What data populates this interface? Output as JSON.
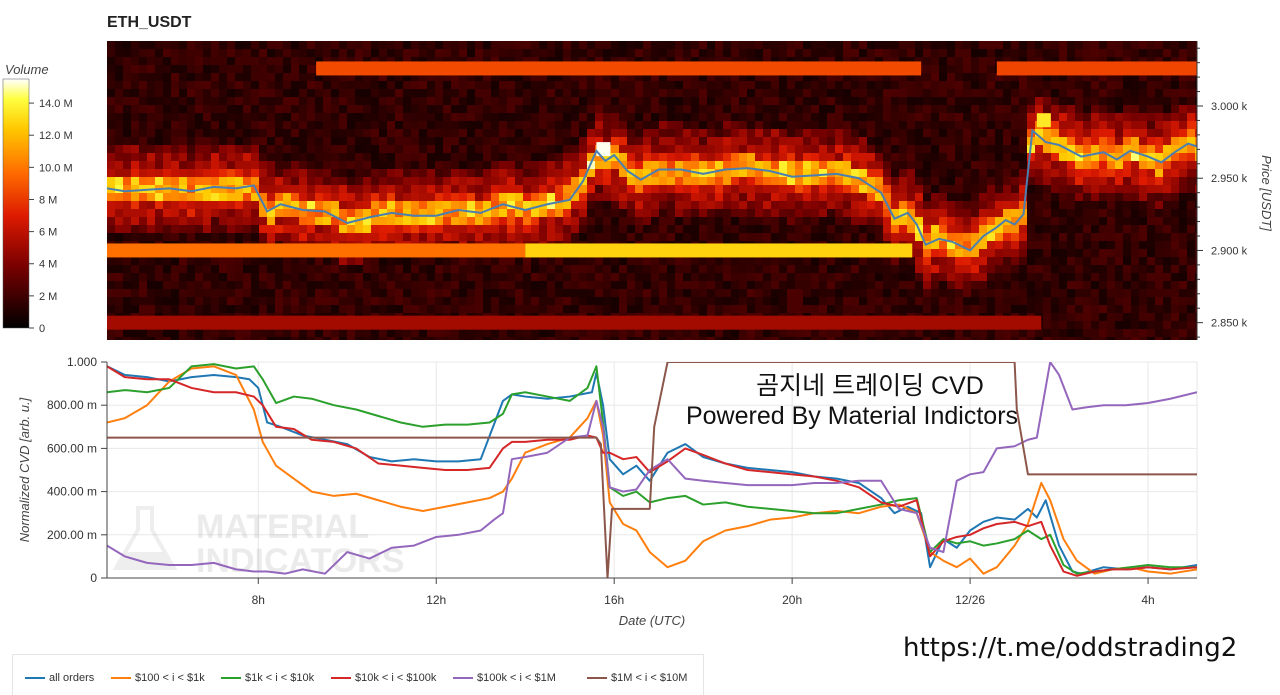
{
  "header": {
    "title": "ETH_USDT"
  },
  "footer": {
    "url": "https://t.me/oddstrading2"
  },
  "chart_data": [
    {
      "type": "heatmap",
      "title": "ETH_USDT",
      "colorbar": {
        "label": "Volume",
        "ticks": [
          "0",
          "2 M",
          "4 M",
          "6 M",
          "8 M",
          "10.0 M",
          "12.0 M",
          "14.0 M"
        ],
        "tick_values": [
          0,
          2,
          4,
          6,
          8,
          10,
          12,
          14
        ],
        "range": [
          0,
          15.5
        ]
      },
      "ylabel": "Price [USDT]",
      "y_ticks": [
        "2.850 k",
        "2.900 k",
        "2.950 k",
        "3.000 k"
      ],
      "y_tick_values": [
        2850,
        2900,
        2950,
        3000
      ],
      "ylim": [
        2838,
        3045
      ],
      "x_range_hours": [
        4.6,
        29.1
      ],
      "levels": [
        {
          "price": 3026,
          "start": 9.3,
          "end": 22.9,
          "volume": 8.6
        },
        {
          "price": 3026,
          "start": 24.6,
          "end": 29.1,
          "volume": 8.4
        },
        {
          "price": 2900,
          "start": 4.6,
          "end": 14.0,
          "volume": 9.8
        },
        {
          "price": 2900,
          "start": 14.0,
          "end": 22.7,
          "volume": 12.8
        },
        {
          "price": 2850,
          "start": 4.6,
          "end": 25.6,
          "volume": 5.2
        }
      ],
      "price_line": {
        "color": "#4a7fb0",
        "x": [
          4.6,
          5.0,
          5.5,
          6.0,
          6.5,
          7.0,
          7.5,
          7.9,
          8.2,
          8.5,
          9.0,
          9.5,
          10.0,
          10.5,
          11.0,
          11.5,
          12.0,
          12.5,
          13.0,
          13.5,
          14.0,
          14.5,
          15.0,
          15.3,
          15.6,
          15.8,
          16.0,
          16.3,
          16.6,
          17.0,
          17.5,
          18.0,
          18.5,
          19.0,
          19.5,
          20.0,
          20.5,
          21.0,
          21.5,
          22.0,
          22.3,
          22.6,
          22.8,
          23.0,
          23.3,
          23.6,
          24.0,
          24.3,
          24.6,
          24.8,
          25.0,
          25.2,
          25.4,
          25.7,
          26.0,
          26.5,
          27.0,
          27.3,
          27.6,
          28.0,
          28.3,
          28.6,
          28.9,
          29.1
        ],
        "y": [
          2943,
          2941,
          2942,
          2943,
          2941,
          2944,
          2943,
          2945,
          2927,
          2932,
          2928,
          2927,
          2919,
          2923,
          2926,
          2924,
          2924,
          2928,
          2926,
          2932,
          2928,
          2932,
          2935,
          2948,
          2969,
          2962,
          2966,
          2955,
          2949,
          2956,
          2956,
          2953,
          2956,
          2957,
          2955,
          2951,
          2952,
          2953,
          2950,
          2940,
          2922,
          2926,
          2918,
          2904,
          2908,
          2906,
          2900,
          2910,
          2916,
          2921,
          2918,
          2925,
          2983,
          2975,
          2973,
          2965,
          2968,
          2963,
          2969,
          2965,
          2961,
          2968,
          2974,
          2972
        ]
      }
    },
    {
      "type": "line",
      "xlabel": "Date (UTC)",
      "ylabel": "Normalized CVD [arb. u.]",
      "x_ticks": [
        "8h",
        "12h",
        "16h",
        "20h",
        "12/26",
        "4h"
      ],
      "x_tick_values": [
        8,
        12,
        16,
        20,
        24,
        28
      ],
      "y_ticks": [
        "0",
        "200.00 m",
        "400.00 m",
        "600.00 m",
        "800.00 m",
        "1.000"
      ],
      "y_tick_values": [
        0,
        0.2,
        0.4,
        0.6,
        0.8,
        1.0
      ],
      "xlim": [
        4.6,
        29.1
      ],
      "ylim": [
        0,
        1.0
      ],
      "annotation": [
        "곰지네 트레이딩 CVD",
        "Powered By Material Indictors"
      ],
      "watermark": [
        "MATERIAL",
        "INDICATORS"
      ],
      "series": [
        {
          "name": "all orders",
          "color": "#1f77b4",
          "x": [
            4.6,
            5.0,
            5.5,
            6.0,
            6.5,
            7.0,
            7.5,
            7.8,
            8.0,
            8.2,
            8.5,
            9.0,
            9.5,
            10.0,
            10.5,
            11.0,
            11.5,
            12.0,
            12.5,
            13.0,
            13.5,
            13.7,
            14.0,
            14.5,
            15.0,
            15.5,
            15.6,
            15.75,
            15.9,
            16.2,
            16.5,
            16.8,
            17.2,
            17.6,
            18.0,
            18.5,
            19.0,
            19.5,
            20.0,
            20.5,
            21.0,
            21.5,
            22.0,
            22.3,
            22.6,
            22.9,
            23.1,
            23.4,
            23.7,
            24.0,
            24.3,
            24.6,
            25.0,
            25.3,
            25.5,
            25.7,
            26.0,
            26.3,
            26.5,
            27.0,
            27.5,
            28.0,
            28.5,
            29.1
          ],
          "y": [
            0.98,
            0.94,
            0.93,
            0.91,
            0.93,
            0.94,
            0.93,
            0.92,
            0.88,
            0.72,
            0.7,
            0.66,
            0.64,
            0.62,
            0.56,
            0.54,
            0.55,
            0.54,
            0.54,
            0.55,
            0.82,
            0.85,
            0.84,
            0.83,
            0.84,
            0.86,
            0.95,
            0.8,
            0.55,
            0.48,
            0.52,
            0.45,
            0.58,
            0.62,
            0.56,
            0.53,
            0.51,
            0.5,
            0.49,
            0.47,
            0.46,
            0.44,
            0.37,
            0.3,
            0.33,
            0.3,
            0.05,
            0.18,
            0.14,
            0.22,
            0.26,
            0.28,
            0.27,
            0.32,
            0.28,
            0.36,
            0.15,
            0.03,
            0.02,
            0.05,
            0.04,
            0.05,
            0.04,
            0.06
          ]
        },
        {
          "name": "$100 < i < $1k",
          "color": "#ff7f0e",
          "x": [
            4.6,
            5.0,
            5.5,
            6.0,
            6.5,
            7.0,
            7.5,
            7.9,
            8.1,
            8.4,
            8.8,
            9.2,
            9.7,
            10.2,
            10.7,
            11.2,
            11.7,
            12.2,
            12.7,
            13.2,
            13.5,
            13.7,
            14.0,
            14.5,
            15.0,
            15.4,
            15.6,
            15.75,
            15.9,
            16.2,
            16.5,
            16.8,
            17.2,
            17.6,
            18.0,
            18.5,
            19.0,
            19.5,
            20.0,
            20.5,
            21.0,
            21.5,
            22.0,
            22.4,
            22.8,
            23.1,
            23.4,
            23.7,
            24.0,
            24.3,
            24.6,
            25.0,
            25.3,
            25.6,
            25.8,
            26.1,
            26.4,
            26.8,
            27.2,
            27.6,
            28.0,
            28.5,
            29.1
          ],
          "y": [
            0.72,
            0.74,
            0.8,
            0.91,
            0.97,
            0.98,
            0.94,
            0.78,
            0.63,
            0.52,
            0.46,
            0.4,
            0.38,
            0.39,
            0.36,
            0.33,
            0.31,
            0.33,
            0.35,
            0.37,
            0.4,
            0.46,
            0.58,
            0.62,
            0.65,
            0.74,
            0.82,
            0.66,
            0.35,
            0.25,
            0.22,
            0.12,
            0.05,
            0.08,
            0.17,
            0.22,
            0.24,
            0.27,
            0.28,
            0.3,
            0.31,
            0.3,
            0.33,
            0.34,
            0.3,
            0.12,
            0.08,
            0.05,
            0.09,
            0.02,
            0.05,
            0.15,
            0.25,
            0.44,
            0.36,
            0.18,
            0.08,
            0.02,
            0.04,
            0.05,
            0.03,
            0.02,
            0.04
          ]
        },
        {
          "name": "$1k < i < $10k",
          "color": "#2ca02c",
          "x": [
            4.6,
            5.0,
            5.5,
            6.0,
            6.5,
            7.0,
            7.5,
            7.9,
            8.1,
            8.4,
            8.8,
            9.2,
            9.7,
            10.2,
            10.7,
            11.2,
            11.7,
            12.2,
            12.7,
            13.2,
            13.5,
            13.7,
            14.0,
            14.5,
            15.0,
            15.4,
            15.6,
            15.75,
            15.9,
            16.2,
            16.5,
            16.8,
            17.2,
            17.6,
            18.0,
            18.5,
            19.0,
            19.5,
            20.0,
            20.5,
            21.0,
            21.5,
            22.0,
            22.4,
            22.8,
            23.1,
            23.4,
            23.7,
            24.0,
            24.3,
            24.6,
            25.0,
            25.3,
            25.6,
            25.8,
            26.1,
            26.4,
            26.8,
            27.2,
            27.6,
            28.0,
            28.5,
            29.1
          ],
          "y": [
            0.86,
            0.87,
            0.86,
            0.88,
            0.98,
            0.99,
            0.97,
            0.98,
            0.92,
            0.81,
            0.84,
            0.83,
            0.8,
            0.78,
            0.75,
            0.72,
            0.7,
            0.71,
            0.71,
            0.72,
            0.76,
            0.85,
            0.86,
            0.84,
            0.82,
            0.88,
            0.98,
            0.72,
            0.42,
            0.38,
            0.4,
            0.35,
            0.37,
            0.38,
            0.34,
            0.35,
            0.33,
            0.32,
            0.31,
            0.3,
            0.3,
            0.32,
            0.34,
            0.36,
            0.37,
            0.12,
            0.18,
            0.16,
            0.17,
            0.15,
            0.16,
            0.18,
            0.22,
            0.18,
            0.2,
            0.06,
            0.02,
            0.03,
            0.04,
            0.05,
            0.06,
            0.05,
            0.05
          ]
        },
        {
          "name": "$10k < i < $100k",
          "color": "#d62728",
          "x": [
            4.6,
            5.0,
            5.5,
            6.0,
            6.5,
            7.0,
            7.5,
            7.9,
            8.1,
            8.4,
            8.8,
            9.2,
            9.7,
            10.2,
            10.7,
            11.2,
            11.7,
            12.2,
            12.7,
            13.2,
            13.5,
            13.7,
            14.0,
            14.5,
            15.0,
            15.4,
            15.6,
            15.75,
            15.9,
            16.2,
            16.5,
            16.8,
            17.2,
            17.6,
            18.0,
            18.5,
            19.0,
            19.5,
            20.0,
            20.5,
            21.0,
            21.5,
            22.0,
            22.4,
            22.8,
            23.1,
            23.4,
            23.7,
            24.0,
            24.3,
            24.6,
            25.0,
            25.3,
            25.6,
            25.8,
            26.1,
            26.4,
            26.8,
            27.2,
            27.6,
            28.0,
            28.5,
            29.1
          ],
          "y": [
            0.98,
            0.93,
            0.92,
            0.92,
            0.88,
            0.86,
            0.86,
            0.84,
            0.8,
            0.7,
            0.69,
            0.64,
            0.63,
            0.6,
            0.53,
            0.52,
            0.51,
            0.5,
            0.5,
            0.51,
            0.6,
            0.63,
            0.63,
            0.64,
            0.64,
            0.66,
            0.65,
            0.58,
            0.58,
            0.55,
            0.56,
            0.49,
            0.54,
            0.6,
            0.57,
            0.53,
            0.5,
            0.49,
            0.48,
            0.47,
            0.45,
            0.42,
            0.35,
            0.33,
            0.36,
            0.1,
            0.17,
            0.19,
            0.2,
            0.23,
            0.25,
            0.26,
            0.24,
            0.26,
            0.15,
            0.03,
            0.01,
            0.03,
            0.04,
            0.04,
            0.05,
            0.04,
            0.05
          ]
        },
        {
          "name": "$100k < i < $1M",
          "color": "#9467bd",
          "x": [
            4.6,
            5.0,
            5.5,
            6.0,
            6.5,
            7.0,
            7.5,
            7.9,
            8.2,
            8.6,
            9.0,
            9.5,
            10.0,
            10.5,
            11.0,
            11.5,
            12.0,
            12.5,
            13.0,
            13.3,
            13.5,
            13.7,
            14.0,
            14.5,
            15.0,
            15.4,
            15.6,
            15.75,
            15.9,
            16.2,
            16.5,
            16.8,
            17.2,
            17.6,
            18.0,
            18.5,
            19.0,
            19.5,
            20.0,
            20.5,
            21.0,
            21.5,
            22.0,
            22.4,
            22.8,
            23.1,
            23.4,
            23.7,
            24.0,
            24.3,
            24.6,
            25.0,
            25.3,
            25.5,
            25.8,
            26.0,
            26.3,
            26.6,
            27.0,
            27.5,
            28.0,
            28.5,
            29.1
          ],
          "y": [
            0.15,
            0.1,
            0.07,
            0.06,
            0.06,
            0.07,
            0.04,
            0.03,
            0.03,
            0.02,
            0.04,
            0.02,
            0.12,
            0.09,
            0.14,
            0.15,
            0.19,
            0.2,
            0.22,
            0.27,
            0.3,
            0.55,
            0.56,
            0.58,
            0.65,
            0.66,
            0.82,
            0.7,
            0.42,
            0.4,
            0.41,
            0.5,
            0.55,
            0.46,
            0.45,
            0.44,
            0.43,
            0.43,
            0.43,
            0.44,
            0.44,
            0.45,
            0.45,
            0.32,
            0.3,
            0.14,
            0.12,
            0.45,
            0.48,
            0.49,
            0.6,
            0.61,
            0.64,
            0.65,
            1.0,
            0.94,
            0.78,
            0.79,
            0.8,
            0.8,
            0.81,
            0.83,
            0.86
          ]
        },
        {
          "name": "$1M < i < $10M",
          "color": "#8c564b",
          "x": [
            4.6,
            15.6,
            15.7,
            15.85,
            15.95,
            16.8,
            16.9,
            17.2,
            25.0,
            25.05,
            25.3,
            29.1
          ],
          "y": [
            0.65,
            0.65,
            0.62,
            0.0,
            0.32,
            0.32,
            0.7,
            1.0,
            1.0,
            0.78,
            0.48,
            0.48
          ]
        }
      ]
    }
  ]
}
